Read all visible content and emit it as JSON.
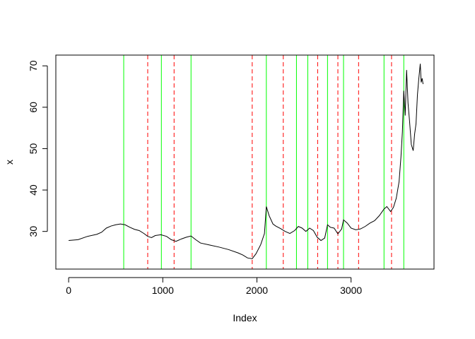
{
  "chart_data": {
    "type": "line",
    "title": "",
    "xlabel": "Index",
    "ylabel": "x",
    "xlim": [
      -136,
      3881
    ],
    "ylim": [
      20.9,
      72.6
    ],
    "x_ticks": [
      0,
      1000,
      2000,
      3000
    ],
    "y_ticks": [
      30,
      40,
      50,
      60,
      70
    ],
    "grid": false,
    "legend": "none",
    "series": [
      {
        "color": "#000000",
        "points": [
          [
            0,
            27.8
          ],
          [
            100,
            28.0
          ],
          [
            200,
            28.8
          ],
          [
            300,
            29.3
          ],
          [
            350,
            29.8
          ],
          [
            400,
            30.8
          ],
          [
            450,
            31.3
          ],
          [
            500,
            31.6
          ],
          [
            550,
            31.8
          ],
          [
            600,
            31.6
          ],
          [
            650,
            31.0
          ],
          [
            700,
            30.5
          ],
          [
            750,
            30.2
          ],
          [
            800,
            29.5
          ],
          [
            840,
            28.8
          ],
          [
            880,
            28.5
          ],
          [
            920,
            29.0
          ],
          [
            980,
            29.2
          ],
          [
            1040,
            28.8
          ],
          [
            1090,
            28.0
          ],
          [
            1140,
            27.6
          ],
          [
            1200,
            28.2
          ],
          [
            1250,
            28.6
          ],
          [
            1300,
            28.9
          ],
          [
            1350,
            28.0
          ],
          [
            1400,
            27.2
          ],
          [
            1500,
            26.7
          ],
          [
            1600,
            26.2
          ],
          [
            1700,
            25.6
          ],
          [
            1800,
            24.8
          ],
          [
            1850,
            24.3
          ],
          [
            1900,
            23.6
          ],
          [
            1950,
            23.4
          ],
          [
            1990,
            24.6
          ],
          [
            2040,
            26.8
          ],
          [
            2080,
            29.5
          ],
          [
            2100,
            36.0
          ],
          [
            2130,
            33.8
          ],
          [
            2170,
            31.8
          ],
          [
            2200,
            31.3
          ],
          [
            2250,
            30.7
          ],
          [
            2300,
            30.0
          ],
          [
            2350,
            29.5
          ],
          [
            2400,
            30.2
          ],
          [
            2440,
            31.2
          ],
          [
            2480,
            30.8
          ],
          [
            2520,
            30.0
          ],
          [
            2560,
            30.8
          ],
          [
            2600,
            30.2
          ],
          [
            2640,
            28.6
          ],
          [
            2680,
            27.8
          ],
          [
            2720,
            28.4
          ],
          [
            2750,
            31.6
          ],
          [
            2780,
            31.0
          ],
          [
            2820,
            30.8
          ],
          [
            2860,
            29.4
          ],
          [
            2900,
            30.6
          ],
          [
            2920,
            32.8
          ],
          [
            2960,
            32.0
          ],
          [
            3000,
            30.8
          ],
          [
            3050,
            30.4
          ],
          [
            3100,
            30.6
          ],
          [
            3150,
            31.2
          ],
          [
            3200,
            32.0
          ],
          [
            3250,
            32.6
          ],
          [
            3300,
            33.8
          ],
          [
            3350,
            35.4
          ],
          [
            3380,
            36.0
          ],
          [
            3420,
            34.8
          ],
          [
            3450,
            35.8
          ],
          [
            3480,
            38.0
          ],
          [
            3510,
            42.0
          ],
          [
            3530,
            48.0
          ],
          [
            3545,
            54.0
          ],
          [
            3560,
            64.0
          ],
          [
            3575,
            58.0
          ],
          [
            3590,
            69.0
          ],
          [
            3605,
            61.0
          ],
          [
            3620,
            57.0
          ],
          [
            3640,
            51.0
          ],
          [
            3660,
            49.5
          ],
          [
            3675,
            53.5
          ],
          [
            3690,
            56.0
          ],
          [
            3705,
            63.0
          ],
          [
            3720,
            67.0
          ],
          [
            3735,
            70.5
          ],
          [
            3745,
            66.0
          ],
          [
            3755,
            67.0
          ],
          [
            3765,
            65.6
          ]
        ]
      }
    ],
    "vlines": [
      {
        "style": "solid",
        "color": "#00FF00",
        "x": [
          585,
          985,
          1300,
          2100,
          2420,
          2540,
          2750,
          2920,
          3350,
          3560
        ]
      },
      {
        "style": "dashed",
        "color": "#FF0000",
        "x": [
          840,
          1120,
          1950,
          2280,
          2645,
          2860,
          3080,
          3430
        ]
      }
    ]
  }
}
